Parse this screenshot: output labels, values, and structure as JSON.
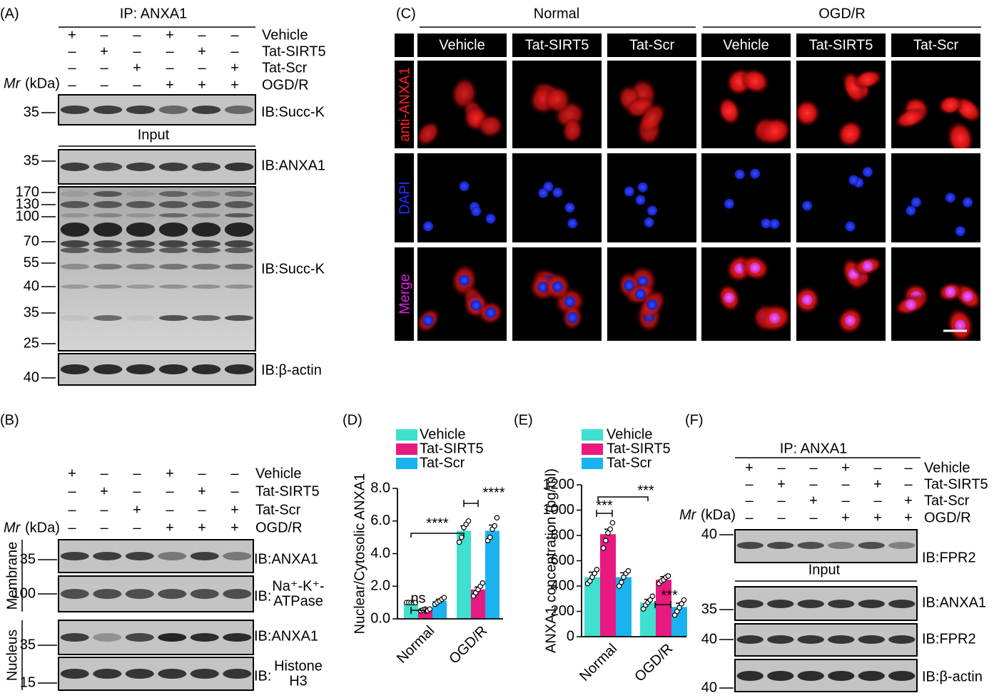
{
  "panels": [
    {
      "label": "(A)",
      "header": "IP: ANXA1",
      "conditions": [
        "Vehicle",
        "Tat-SIRT5",
        "Tat-Scr",
        "OGD/R"
      ],
      "signs": [
        [
          "+",
          "–",
          "–",
          "+",
          "–",
          "–"
        ],
        [
          "–",
          "+",
          "–",
          "–",
          "+",
          "–"
        ],
        [
          "–",
          "–",
          "+",
          "–",
          "–",
          "+"
        ],
        [
          "–",
          "–",
          "–",
          "+",
          "+",
          "+"
        ]
      ],
      "mr": "Mr",
      "kda": "(kDa)",
      "input": "Input",
      "blots": [
        {
          "ib": "IB:Succ-K",
          "markers": [
            "35"
          ]
        },
        {
          "ib": "IB:ANXA1",
          "markers": [
            "35"
          ]
        },
        {
          "ib": "IB:Succ-K",
          "markers": [
            "170",
            "130",
            "100",
            "70",
            "55",
            "40",
            "35",
            "25"
          ]
        },
        {
          "ib": "IB:β-actin",
          "markers": [
            "40"
          ]
        }
      ]
    },
    {
      "label": "(B)",
      "conditions": [
        "Vehicle",
        "Tat-SIRT5",
        "Tat-Scr",
        "OGD/R"
      ],
      "signs": [
        [
          "+",
          "–",
          "–",
          "+",
          "–",
          "–"
        ],
        [
          "–",
          "+",
          "–",
          "–",
          "+",
          "–"
        ],
        [
          "–",
          "–",
          "+",
          "–",
          "–",
          "+"
        ],
        [
          "–",
          "–",
          "–",
          "+",
          "+",
          "+"
        ]
      ],
      "mr": "Mr",
      "kda": "(kDa)",
      "fractions": [
        "Membrane",
        "Nucleus"
      ],
      "blots": [
        {
          "ib": "IB:ANXA1",
          "markers": [
            "35"
          ]
        },
        {
          "ib": "IB:",
          "target": [
            "Na⁺-K⁺-",
            "ATPase"
          ],
          "markers": [
            "100"
          ]
        },
        {
          "ib": "IB:ANXA1",
          "markers": [
            "35"
          ]
        },
        {
          "ib": "IB:",
          "target": [
            "Histone",
            "H3"
          ],
          "markers": [
            "15"
          ]
        }
      ]
    },
    {
      "label": "(F)",
      "header": "IP: ANXA1",
      "conditions": [
        "Vehicle",
        "Tat-SIRT5",
        "Tat-Scr",
        "OGD/R"
      ],
      "signs": [
        [
          "+",
          "–",
          "–",
          "+",
          "–",
          "–"
        ],
        [
          "–",
          "+",
          "–",
          "–",
          "+",
          "–"
        ],
        [
          "–",
          "–",
          "+",
          "–",
          "–",
          "+"
        ],
        [
          "–",
          "–",
          "–",
          "+",
          "+",
          "+"
        ]
      ],
      "mr": "Mr",
      "kda": "(kDa)",
      "input": "Input",
      "blots": [
        {
          "ib": "IB:FPR2",
          "markers": [
            "40"
          ]
        },
        {
          "ib": "IB:ANXA1",
          "markers": [
            "35"
          ]
        },
        {
          "ib": "IB:FPR2",
          "markers": [
            "40"
          ]
        },
        {
          "ib": "IB:β-actin",
          "markers": [
            "40"
          ]
        }
      ]
    }
  ],
  "imaging": {
    "label": "(C)",
    "groups": [
      "Normal",
      "OGD/R"
    ],
    "columns": [
      "Vehicle",
      "Tat-SIRT5",
      "Tat-Scr",
      "Vehicle",
      "Tat-SIRT5",
      "Tat-Scr"
    ],
    "rows": [
      "anti-ANXA1",
      "DAPI",
      "Merge"
    ]
  },
  "chart_data": [
    {
      "type": "bar",
      "label": "(D)",
      "ylabel": "Nuclear/Cytosolic ANXA1",
      "categories": [
        "Normal",
        "OGD/R"
      ],
      "series": [
        {
          "name": "Vehicle",
          "color": "#3fe0cf",
          "values": [
            1.0,
            5.4
          ],
          "errors": [
            0.03,
            0.3
          ],
          "points": [
            [
              1.0,
              1.0,
              1.0,
              1.0,
              1.0
            ],
            [
              4.7,
              5.0,
              5.6,
              5.8,
              6.0
            ]
          ]
        },
        {
          "name": "Tat-SIRT5",
          "color": "#e8197f",
          "values": [
            0.55,
            1.8
          ],
          "errors": [
            0.04,
            0.15
          ],
          "points": [
            [
              0.5,
              0.55,
              0.6,
              0.5,
              0.6
            ],
            [
              1.4,
              1.6,
              1.8,
              2.0,
              2.2
            ]
          ]
        },
        {
          "name": "Tat-Scr",
          "color": "#1bb2f0",
          "values": [
            1.1,
            5.4
          ],
          "errors": [
            0.1,
            0.35
          ],
          "points": [
            [
              0.9,
              1.0,
              1.1,
              1.2,
              1.3
            ],
            [
              4.8,
              5.0,
              5.5,
              5.7,
              6.2
            ]
          ]
        }
      ],
      "ylim": [
        0,
        8
      ],
      "yticks": [
        {
          "value": 0,
          "label": "0.0"
        },
        {
          "value": 2,
          "label": "2.0"
        },
        {
          "value": 4,
          "label": "4.0"
        },
        {
          "value": 6,
          "label": "6.0"
        },
        {
          "value": 8,
          "label": "8.0"
        }
      ],
      "annotations": [
        {
          "text": "ns"
        },
        {
          "text": "****"
        },
        {
          "text": "****"
        }
      ]
    },
    {
      "type": "bar",
      "label": "(E)",
      "ylabel": "ANXA1 concentration (pg/ml)",
      "categories": [
        "Normal",
        "OGD/R"
      ],
      "series": [
        {
          "name": "Vehicle",
          "color": "#3fe0cf",
          "values": [
            470,
            270
          ],
          "errors": [
            40,
            25
          ],
          "points": [
            [
              420,
              440,
              470,
              500,
              530
            ],
            [
              220,
              250,
              270,
              290,
              320
            ]
          ]
        },
        {
          "name": "Tat-SIRT5",
          "color": "#e8197f",
          "values": [
            810,
            450
          ],
          "errors": [
            40,
            25
          ],
          "points": [
            [
              700,
              760,
              820,
              850,
              900
            ],
            [
              420,
              440,
              450,
              470,
              480
            ]
          ]
        },
        {
          "name": "Tat-Scr",
          "color": "#1bb2f0",
          "values": [
            470,
            235
          ],
          "errors": [
            35,
            30
          ],
          "points": [
            [
              400,
              430,
              470,
              500,
              520
            ],
            [
              170,
              200,
              230,
              260,
              290
            ]
          ]
        }
      ],
      "ylim": [
        0,
        1200
      ],
      "yticks": [
        0,
        200,
        400,
        600,
        800,
        1000,
        1200
      ],
      "annotations": [
        {
          "text": "***"
        },
        {
          "text": "***"
        },
        {
          "text": "***"
        }
      ]
    }
  ]
}
